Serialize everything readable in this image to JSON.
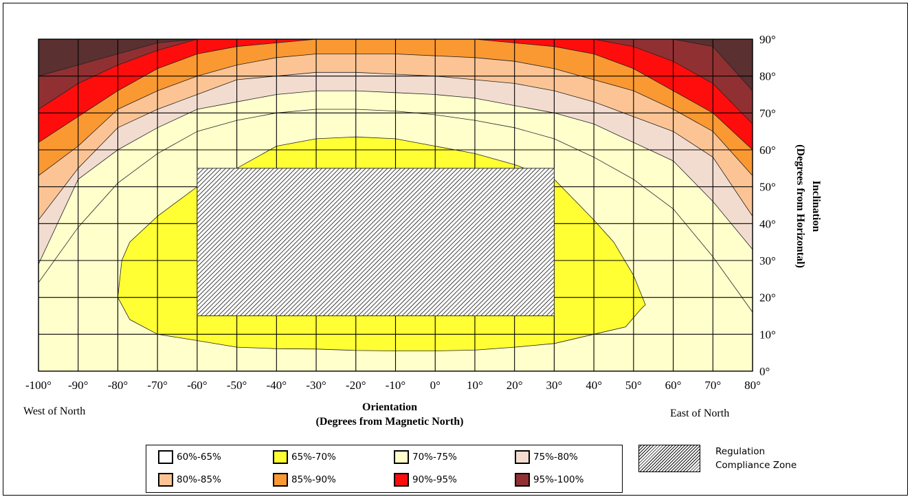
{
  "chart_data": {
    "type": "heatmap",
    "x_axis": {
      "title": "Orientation",
      "subtitle": "(Degrees from Magnetic North)",
      "range": [
        -100,
        80
      ],
      "ticks": [
        "-100°",
        "-90°",
        "-80°",
        "-70°",
        "-60°",
        "-50°",
        "-40°",
        "-30°",
        "-20°",
        "-10°",
        "0°",
        "10°",
        "20°",
        "30°",
        "40°",
        "50°",
        "60°",
        "70°",
        "80°"
      ],
      "left_note": "West of North",
      "right_note": "East of North"
    },
    "y_axis": {
      "title": "Inclination",
      "subtitle": "(Degrees from Horizontal)",
      "range": [
        0,
        90
      ],
      "ticks": [
        "0°",
        "10°",
        "20°",
        "30°",
        "40°",
        "50°",
        "60°",
        "70°",
        "80°",
        "90°"
      ]
    },
    "grid": true,
    "bands": [
      {
        "label": "60%-65%",
        "color": "#ffffff"
      },
      {
        "label": "65%-70%",
        "color": "#ffff33"
      },
      {
        "label": "70%-75%",
        "color": "#ffffcc"
      },
      {
        "label": "75%-80%",
        "color": "#f2dcd0"
      },
      {
        "label": "80%-85%",
        "color": "#fcc494"
      },
      {
        "label": "85%-90%",
        "color": "#fa9832"
      },
      {
        "label": "90%-95%",
        "color": "#ff0d0d"
      },
      {
        "label": "95%-100%",
        "color": "#913032"
      }
    ],
    "top_color": "#5a3030",
    "contours": [
      {
        "band": "65%-70%",
        "points": [
          [
            -80,
            20
          ],
          [
            -79,
            30
          ],
          [
            -77,
            35
          ],
          [
            -70,
            42
          ],
          [
            -60,
            50
          ],
          [
            -50,
            55
          ],
          [
            -40,
            61
          ],
          [
            -30,
            63
          ],
          [
            -20,
            63.5
          ],
          [
            -10,
            63
          ],
          [
            0,
            61
          ],
          [
            10,
            59
          ],
          [
            20,
            56
          ],
          [
            30,
            52
          ],
          [
            40,
            41
          ],
          [
            45,
            35
          ],
          [
            50,
            26
          ],
          [
            53,
            18
          ],
          [
            52,
            17
          ],
          [
            48,
            12
          ],
          [
            40,
            10
          ],
          [
            30,
            7.5
          ],
          [
            20,
            6.5
          ],
          [
            10,
            5.7
          ],
          [
            0,
            5.5
          ],
          [
            -10,
            5.5
          ],
          [
            -20,
            5.6
          ],
          [
            -30,
            6
          ],
          [
            -40,
            6.1
          ],
          [
            -50,
            6.5
          ],
          [
            -60,
            8.3
          ],
          [
            -70,
            10
          ],
          [
            -77,
            14
          ],
          [
            -80,
            20
          ]
        ]
      },
      {
        "band": "70%-75%",
        "points": [
          [
            -100,
            0
          ],
          [
            -100,
            24
          ],
          [
            -90,
            39
          ],
          [
            -80,
            51
          ],
          [
            -70,
            59
          ],
          [
            -60,
            65
          ],
          [
            -50,
            68
          ],
          [
            -40,
            70
          ],
          [
            -30,
            71
          ],
          [
            -20,
            71
          ],
          [
            -10,
            70.5
          ],
          [
            0,
            69.5
          ],
          [
            10,
            68
          ],
          [
            20,
            66
          ],
          [
            30,
            63
          ],
          [
            40,
            58
          ],
          [
            50,
            52
          ],
          [
            60,
            44
          ],
          [
            70,
            31
          ],
          [
            80,
            16
          ],
          [
            80,
            0
          ]
        ]
      },
      {
        "band": "75%-80%",
        "points": [
          [
            -100,
            0
          ],
          [
            -100,
            29
          ],
          [
            -90,
            52
          ],
          [
            -80,
            60
          ],
          [
            -70,
            66
          ],
          [
            -60,
            71
          ],
          [
            -50,
            73
          ],
          [
            -40,
            75
          ],
          [
            -30,
            76
          ],
          [
            -20,
            76
          ],
          [
            -10,
            75.5
          ],
          [
            0,
            75
          ],
          [
            10,
            74
          ],
          [
            20,
            72
          ],
          [
            30,
            70
          ],
          [
            40,
            67
          ],
          [
            50,
            62
          ],
          [
            60,
            57
          ],
          [
            70,
            46
          ],
          [
            80,
            33
          ],
          [
            80,
            0
          ]
        ]
      },
      {
        "band": "80%-85%",
        "points": [
          [
            -100,
            0
          ],
          [
            -100,
            41
          ],
          [
            -90,
            55
          ],
          [
            -80,
            66
          ],
          [
            -70,
            71
          ],
          [
            -60,
            75
          ],
          [
            -50,
            79
          ],
          [
            -40,
            80
          ],
          [
            -30,
            81
          ],
          [
            -20,
            81
          ],
          [
            -10,
            80.5
          ],
          [
            0,
            80
          ],
          [
            10,
            79
          ],
          [
            20,
            78
          ],
          [
            30,
            76
          ],
          [
            40,
            73
          ],
          [
            50,
            69
          ],
          [
            60,
            65
          ],
          [
            70,
            58
          ],
          [
            80,
            42
          ],
          [
            80,
            0
          ]
        ]
      },
      {
        "band": "85%-90%",
        "points": [
          [
            -100,
            0
          ],
          [
            -100,
            53
          ],
          [
            -90,
            61
          ],
          [
            -80,
            71
          ],
          [
            -70,
            76
          ],
          [
            -60,
            80
          ],
          [
            -50,
            83
          ],
          [
            -40,
            85
          ],
          [
            -30,
            86
          ],
          [
            -20,
            86
          ],
          [
            -10,
            86
          ],
          [
            0,
            85.5
          ],
          [
            10,
            85
          ],
          [
            20,
            84
          ],
          [
            30,
            82
          ],
          [
            40,
            79
          ],
          [
            50,
            76
          ],
          [
            60,
            71
          ],
          [
            70,
            65
          ],
          [
            80,
            53
          ],
          [
            80,
            0
          ]
        ]
      },
      {
        "band": "90%-95%",
        "points": [
          [
            -100,
            0
          ],
          [
            -100,
            62
          ],
          [
            -90,
            69
          ],
          [
            -80,
            76
          ],
          [
            -70,
            82
          ],
          [
            -60,
            86
          ],
          [
            -50,
            88
          ],
          [
            -40,
            89
          ],
          [
            -30,
            90
          ],
          [
            -20,
            90
          ],
          [
            -10,
            90
          ],
          [
            0,
            90
          ],
          [
            10,
            90
          ],
          [
            20,
            89
          ],
          [
            30,
            88
          ],
          [
            40,
            86
          ],
          [
            50,
            82
          ],
          [
            60,
            76
          ],
          [
            70,
            70
          ],
          [
            80,
            60
          ],
          [
            80,
            0
          ]
        ]
      },
      {
        "band": "95%-100%",
        "points": [
          [
            -100,
            0
          ],
          [
            -100,
            71
          ],
          [
            -90,
            78
          ],
          [
            -80,
            83
          ],
          [
            -70,
            87
          ],
          [
            -60,
            90
          ],
          [
            40,
            90
          ],
          [
            50,
            88
          ],
          [
            60,
            84
          ],
          [
            70,
            78
          ],
          [
            80,
            67
          ],
          [
            80,
            0
          ]
        ]
      }
    ],
    "top_contour": [
      [
        -100,
        0
      ],
      [
        -100,
        80
      ],
      [
        -90,
        83
      ],
      [
        -80,
        86
      ],
      [
        -70,
        89
      ],
      [
        -60,
        90
      ],
      [
        60,
        90
      ],
      [
        70,
        88
      ],
      [
        80,
        76
      ],
      [
        80,
        0
      ]
    ],
    "regulation_zone": {
      "label": "Regulation\nCompliance Zone",
      "x_range": [
        -60,
        30
      ],
      "y_range": [
        15,
        55
      ]
    }
  }
}
